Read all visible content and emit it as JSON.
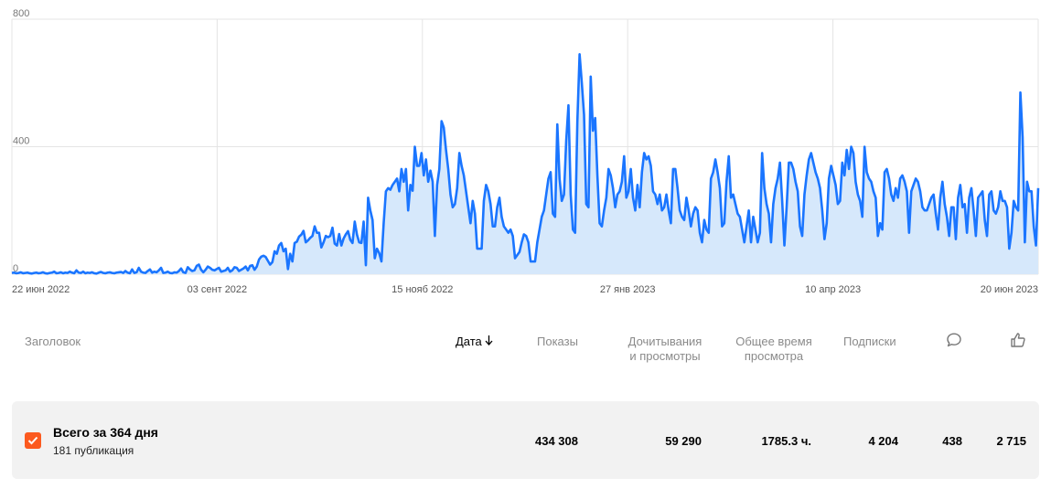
{
  "chart_data": {
    "type": "area",
    "x_ticks": [
      "22 июн 2022",
      "03 сент 2022",
      "15 нояб 2022",
      "27 янв 2023",
      "10 апр 2023",
      "20 июн 2023"
    ],
    "y_ticks": [
      "0",
      "400",
      "800"
    ],
    "ylim": [
      0,
      800
    ],
    "grid": true,
    "series": [
      {
        "color": "#1a75ff",
        "fill": "#d6e8fb",
        "values": [
          4,
          5,
          3,
          4,
          6,
          3,
          4,
          5,
          3,
          2,
          4,
          5,
          3,
          4,
          6,
          3,
          2,
          4,
          5,
          8,
          3,
          4,
          6,
          3,
          5,
          4,
          8,
          5,
          3,
          12,
          5,
          4,
          8,
          3,
          5,
          4,
          6,
          3,
          2,
          5,
          7,
          4,
          3,
          5,
          6,
          4,
          3,
          5,
          6,
          7,
          4,
          10,
          5,
          3,
          15,
          4,
          6,
          20,
          8,
          5,
          4,
          10,
          15,
          5,
          8,
          6,
          12,
          20,
          4,
          5,
          8,
          4,
          3,
          6,
          5,
          10,
          18,
          6,
          4,
          22,
          15,
          10,
          12,
          26,
          30,
          14,
          6,
          14,
          24,
          20,
          14,
          12,
          16,
          20,
          8,
          10,
          12,
          20,
          8,
          12,
          22,
          20,
          10,
          14,
          18,
          24,
          12,
          26,
          28,
          14,
          24,
          46,
          55,
          58,
          54,
          42,
          30,
          38,
          72,
          64,
          90,
          98,
          72,
          80,
          16,
          64,
          40,
          98,
          102,
          118,
          124,
          136,
          100,
          106,
          114,
          120,
          150,
          130,
          130,
          84,
          100,
          120,
          116,
          120,
          146,
          96,
          90,
          126,
          90,
          112,
          125,
          135,
          108,
          98,
          165,
          124,
          100,
          98,
          165,
          28,
          240,
          200,
          170,
          50,
          80,
          66,
          40,
          160,
          260,
          270,
          265,
          280,
          290,
          300,
          260,
          330,
          290,
          330,
          200,
          280,
          262,
          400,
          340,
          340,
          380,
          310,
          360,
          290,
          325,
          290,
          120,
          280,
          330,
          480,
          460,
          390,
          330,
          250,
          210,
          220,
          270,
          380,
          340,
          310,
          260,
          210,
          160,
          230,
          190,
          80,
          80,
          80,
          230,
          280,
          260,
          220,
          150,
          150,
          210,
          240,
          180,
          150,
          140,
          130,
          140,
          120,
          50,
          60,
          70,
          100,
          125,
          120,
          100,
          40,
          40,
          40,
          100,
          140,
          180,
          200,
          250,
          300,
          320,
          190,
          180,
          470,
          300,
          230,
          250,
          420,
          530,
          250,
          140,
          130,
          480,
          690,
          600,
          500,
          220,
          210,
          620,
          450,
          490,
          310,
          160,
          150,
          200,
          240,
          330,
          310,
          270,
          210,
          250,
          260,
          290,
          370,
          240,
          260,
          330,
          240,
          200,
          280,
          210,
          320,
          380,
          360,
          370,
          340,
          260,
          250,
          220,
          250,
          200,
          210,
          250,
          200,
          160,
          330,
          330,
          270,
          200,
          180,
          170,
          240,
          200,
          150,
          190,
          210,
          200,
          130,
          100,
          170,
          140,
          130,
          300,
          320,
          360,
          320,
          270,
          150,
          160,
          290,
          370,
          240,
          250,
          220,
          190,
          180,
          140,
          100,
          150,
          200,
          100,
          180,
          140,
          100,
          130,
          380,
          270,
          220,
          190,
          100,
          220,
          270,
          300,
          350,
          230,
          90,
          210,
          350,
          350,
          330,
          290,
          260,
          150,
          120,
          250,
          310,
          360,
          380,
          350,
          320,
          300,
          270,
          200,
          110,
          160,
          300,
          340,
          310,
          280,
          220,
          230,
          350,
          310,
          390,
          330,
          400,
          380,
          290,
          250,
          230,
          180,
          400,
          320,
          300,
          290,
          260,
          240,
          120,
          160,
          140,
          320,
          330,
          300,
          250,
          230,
          270,
          240,
          300,
          310,
          290,
          260,
          130,
          260,
          280,
          300,
          290,
          260,
          210,
          200,
          200,
          220,
          240,
          250,
          190,
          140,
          240,
          290,
          220,
          180,
          120,
          210,
          210,
          110,
          240,
          280,
          210,
          220,
          130,
          240,
          270,
          200,
          120,
          240,
          250,
          260,
          170,
          120,
          250,
          260,
          200,
          190,
          210,
          260,
          230,
          230,
          210,
          80,
          130,
          230,
          210,
          200,
          570,
          430,
          100,
          290,
          260,
          260,
          150,
          90,
          270
        ]
      }
    ]
  },
  "table": {
    "headers": {
      "title": "Заголовок",
      "date": "Дата",
      "shows": "Показы",
      "reads_line1": "Дочитывания",
      "reads_line2": "и просмотры",
      "time_line1": "Общее время",
      "time_line2": "просмотра",
      "subs": "Подписки"
    },
    "icons": {
      "comments": "comment-icon",
      "likes": "thumbs-up-icon",
      "sort": "arrow-down-icon"
    },
    "total": {
      "title": "Всего за 364 дня",
      "subtitle": "181 публикация",
      "shows": "434 308",
      "reads": "59 290",
      "time": "1785.3 ч.",
      "subs": "4 204",
      "comments": "438",
      "likes": "2 715"
    },
    "accent": "#fc5a1f"
  }
}
